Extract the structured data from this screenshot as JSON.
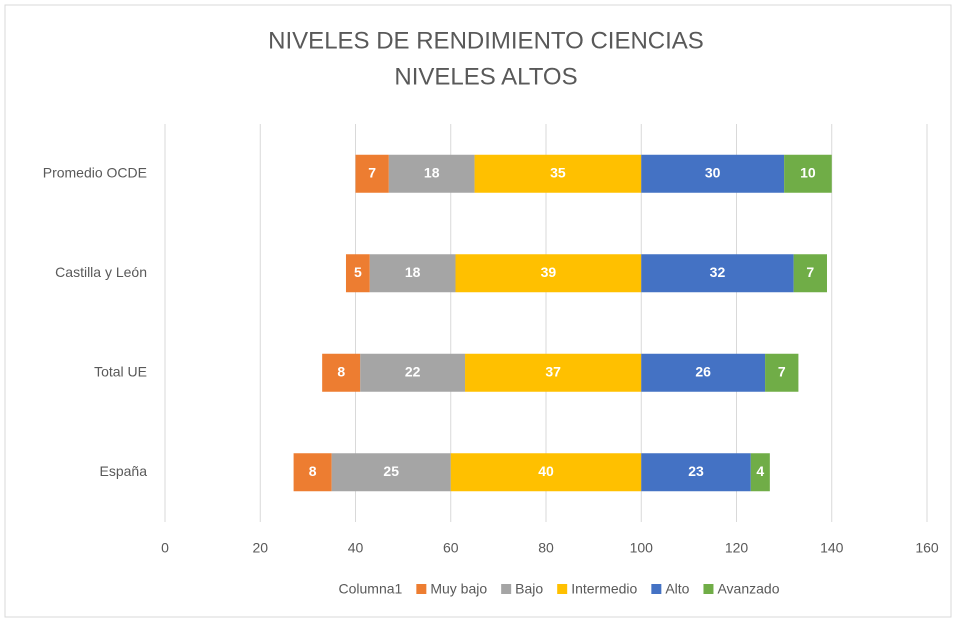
{
  "chart_data": {
    "type": "stacked_barh",
    "title": [
      "NIVELES DE RENDIMIENTO CIENCIAS",
      "NIVELES ALTOS"
    ],
    "categories": [
      "Promedio OCDE",
      "Castilla y León",
      "Total UE",
      "España"
    ],
    "series": [
      {
        "name": "Columna1",
        "color": "transparent",
        "values": [
          40,
          38,
          33,
          27
        ]
      },
      {
        "name": "Muy bajo",
        "color": "#ed7d31",
        "values": [
          7,
          5,
          8,
          8
        ]
      },
      {
        "name": "Bajo",
        "color": "#a5a5a5",
        "values": [
          18,
          18,
          22,
          25
        ]
      },
      {
        "name": "Intermedio",
        "color": "#ffc000",
        "values": [
          35,
          39,
          37,
          40
        ]
      },
      {
        "name": "Alto",
        "color": "#4472c4",
        "values": [
          30,
          32,
          26,
          23
        ]
      },
      {
        "name": "Avanzado",
        "color": "#70ad47",
        "values": [
          10,
          7,
          7,
          4
        ]
      }
    ],
    "xlim": [
      0,
      160
    ],
    "xticks": [
      0,
      20,
      40,
      60,
      80,
      100,
      120,
      140,
      160
    ],
    "grid": true,
    "legend": "bottom"
  }
}
